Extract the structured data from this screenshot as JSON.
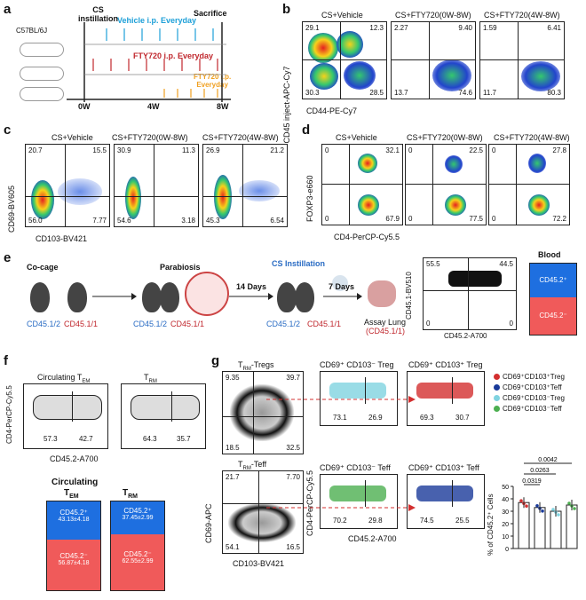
{
  "panels": {
    "a": "a",
    "b": "b",
    "c": "c",
    "d": "d",
    "e": "e",
    "f": "f",
    "g": "g"
  },
  "a": {
    "strain": "C57BL/6J",
    "cs_instillation": "CS\ninstillation",
    "vehicle": "Vehicle i.p. Everyday",
    "fty1": "FTY720 i.p. Everyday",
    "fty2": "FTY720 i.p.\nEveryday",
    "sacrifice": "Sacrifice",
    "w0": "0W",
    "w4": "4W",
    "w8": "8W"
  },
  "b": {
    "titles": [
      "CS+Vehicle",
      "CS+FTY720(0W-8W)",
      "CS+FTY720(4W-8W)"
    ],
    "ylabel": "CD45 inject-APC-Cy7",
    "xlabel": "CD44-PE-Cy7",
    "q": [
      [
        "29.1",
        "12.3",
        "30.3",
        "28.5"
      ],
      [
        "2.27",
        "9.40",
        "13.7",
        "74.6"
      ],
      [
        "1.59",
        "6.41",
        "11.7",
        "80.3"
      ]
    ]
  },
  "c": {
    "titles": [
      "CS+Vehicle",
      "CS+FTY720(0W-8W)",
      "CS+FTY720(4W-8W)"
    ],
    "ylabel": "CD69-BV605",
    "xlabel": "CD103-BV421",
    "q": [
      [
        "20.7",
        "15.5",
        "56.0",
        "7.77"
      ],
      [
        "30.9",
        "11.3",
        "54.6",
        "3.18"
      ],
      [
        "26.9",
        "21.2",
        "45.3",
        "6.54"
      ]
    ]
  },
  "d": {
    "titles": [
      "CS+Vehicle",
      "CS+FTY720(0W-8W)",
      "CS+FTY720(4W-8W)"
    ],
    "ylabel": "FOXP3-e660",
    "xlabel": "CD4-PerCP-Cy5.5",
    "q": [
      [
        "0",
        "32.1",
        "0",
        "67.9"
      ],
      [
        "0",
        "22.5",
        "0",
        "77.5"
      ],
      [
        "0",
        "27.8",
        "0",
        "72.2"
      ]
    ]
  },
  "e": {
    "cocage": "Co-cage",
    "parabiosis": "Parabiosis",
    "cs": "CS Instillation",
    "days14": "14 Days",
    "days7": "7 Days",
    "m1": "CD45.1/2",
    "m2": "CD45.1/1",
    "assay": "Assay Lung",
    "assay2": "(CD45.1/1)",
    "ylabel": "CD45.1-BV510",
    "xlabel": "CD45.2-A700",
    "q": [
      "55.5",
      "44.5",
      "0",
      "0"
    ],
    "blood": "Blood",
    "top": "CD45.2⁺",
    "bot": "CD45.2⁻"
  },
  "f": {
    "t1": "Circulating T",
    "t1sub": "EM",
    "t2": "T",
    "t2sub": "RM",
    "ylabel": "CD4-PerCP-Cy5.5",
    "xlabel": "CD45.2-A700",
    "v1": [
      "57.3",
      "42.7"
    ],
    "v2": [
      "64.3",
      "35.7"
    ],
    "circ": "Circulating",
    "tem": "T",
    "temsub": "EM",
    "trm": "T",
    "trmsub": "RM",
    "b1top": "CD45.2⁺",
    "b1topv": "43.13±4.18",
    "b1bot": "CD45.2⁻",
    "b1botv": "56.87±4.18",
    "b2top": "CD45.2⁺",
    "b2topv": "37.45±2.99",
    "b2bot": "CD45.2⁻",
    "b2botv": "62.55±2.99"
  },
  "g": {
    "tregs": "T",
    "tregs_sub": "RM",
    "tregs_suf": "-Tregs",
    "teff": "T",
    "teff_sub": "RM",
    "teff_suf": "-Teff",
    "tq": [
      "9.35",
      "39.7",
      "18.5",
      "32.5"
    ],
    "eq": [
      "21.7",
      "7.70",
      "54.1",
      "16.5"
    ],
    "ylabel": "CD69-APC",
    "xlabel": "CD103-BV421",
    "ylabel2": "CD4-PerCP-Cy5.5",
    "xlabel2": "CD45.2-A700",
    "s1": "CD69⁺ CD103⁻ Treg",
    "s2": "CD69⁺ CD103⁺ Treg",
    "s3": "CD69⁺ CD103⁻ Teff",
    "s4": "CD69⁺ CD103⁺ Teff",
    "s1v": [
      "73.1",
      "26.9"
    ],
    "s2v": [
      "69.3",
      "30.7"
    ],
    "s3v": [
      "70.2",
      "29.8"
    ],
    "s4v": [
      "74.5",
      "25.5"
    ],
    "legend": [
      "CD69⁺CD103⁺Treg",
      "CD69⁺CD103⁺Teff",
      "CD69⁺CD103⁻Treg",
      "CD69⁺CD103⁻Teff"
    ],
    "legend_colors": [
      "#d32f2f",
      "#1a3a9a",
      "#7fd3e0",
      "#4caf50"
    ],
    "pvals": [
      "0.0042",
      "0.0263",
      "0.0319"
    ],
    "bar_ylabel": "% of CD45.2⁺ Cells",
    "yticks": [
      "0",
      "10",
      "20",
      "30",
      "40",
      "50"
    ]
  },
  "chart_data": {
    "type": "bar",
    "categories": [
      "CD69⁺CD103⁺Treg",
      "CD69⁺CD103⁺Teff",
      "CD69⁺CD103⁻Treg",
      "CD69⁺CD103⁻Teff"
    ],
    "values": [
      37,
      33,
      30,
      35
    ],
    "ylabel": "% of CD45.2⁺ Cells",
    "ylim": [
      0,
      50
    ]
  }
}
